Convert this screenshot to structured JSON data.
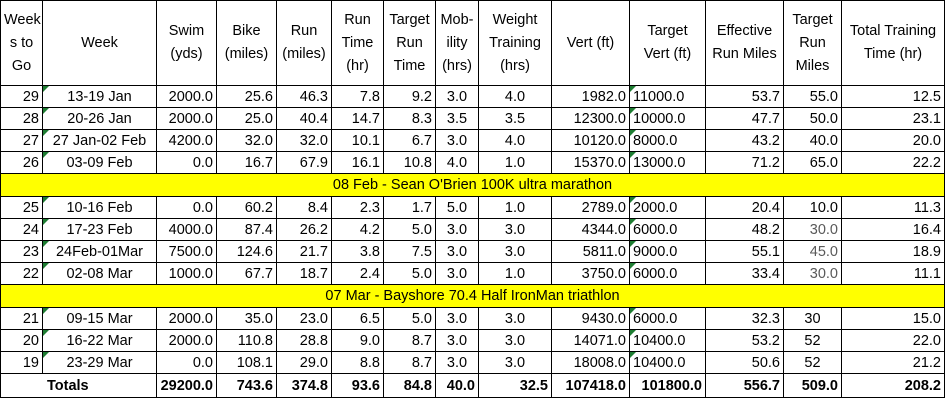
{
  "headers": [
    "Week s to Go",
    "Week",
    "Swim (yds)",
    "Bike (miles)",
    "Run (miles)",
    "Run Time (hr)",
    "Target Run Time",
    "Mob-ility (hrs)",
    "Weight Training (hrs)",
    "Vert (ft)",
    "Target Vert (ft)",
    "Effective Run Miles",
    "Target Run Miles",
    "Total Training Time (hr)"
  ],
  "rows_a": [
    [
      "29",
      "13-19 Jan",
      "2000.0",
      "25.6",
      "46.3",
      "7.8",
      "9.2",
      "3.0",
      "4.0",
      "1982.0",
      "11000.0",
      "53.7",
      "55.0",
      "12.5"
    ],
    [
      "28",
      "20-26 Jan",
      "2000.0",
      "25.0",
      "40.4",
      "14.7",
      "8.3",
      "3.5",
      "3.5",
      "12300.0",
      "10000.0",
      "47.7",
      "50.0",
      "23.1"
    ],
    [
      "27",
      "27 Jan-02 Feb",
      "4200.0",
      "32.0",
      "32.0",
      "10.1",
      "6.7",
      "3.0",
      "4.0",
      "10120.0",
      "8000.0",
      "43.2",
      "40.0",
      "20.0"
    ],
    [
      "26",
      "03-09 Feb",
      "0.0",
      "16.7",
      "67.9",
      "16.1",
      "10.8",
      "4.0",
      "1.0",
      "15370.0",
      "13000.0",
      "71.2",
      "65.0",
      "22.2"
    ]
  ],
  "event_1": "08 Feb - Sean O'Brien 100K ultra marathon",
  "rows_b": [
    [
      "25",
      "10-16 Feb",
      "0.0",
      "60.2",
      "8.4",
      "2.3",
      "1.7",
      "5.0",
      "1.0",
      "2789.0",
      "2000.0",
      "20.4",
      "10.0",
      "11.3"
    ],
    [
      "24",
      "17-23 Feb",
      "4000.0",
      "87.4",
      "26.2",
      "4.2",
      "5.0",
      "3.0",
      "3.0",
      "4344.0",
      "6000.0",
      "48.2",
      "30.0",
      "16.4"
    ],
    [
      "23",
      "24Feb-01Mar",
      "7500.0",
      "124.6",
      "21.7",
      "3.8",
      "7.5",
      "3.0",
      "3.0",
      "5811.0",
      "9000.0",
      "55.1",
      "45.0",
      "18.9"
    ],
    [
      "22",
      "02-08 Mar",
      "1000.0",
      "67.7",
      "18.7",
      "2.4",
      "5.0",
      "3.0",
      "1.0",
      "3750.0",
      "6000.0",
      "33.4",
      "30.0",
      "11.1"
    ]
  ],
  "event_2": "07 Mar - Bayshore 70.4 Half IronMan triathlon",
  "rows_c": [
    [
      "21",
      "09-15 Mar",
      "2000.0",
      "35.0",
      "23.0",
      "6.5",
      "5.0",
      "3.0",
      "3.0",
      "9430.0",
      "6000.0",
      "32.3",
      "30",
      "15.0"
    ],
    [
      "20",
      "16-22 Mar",
      "2000.0",
      "110.8",
      "28.8",
      "9.0",
      "8.7",
      "3.0",
      "3.0",
      "14071.0",
      "10400.0",
      "53.2",
      "52",
      "22.0"
    ],
    [
      "19",
      "23-29 Mar",
      "0.0",
      "108.1",
      "29.0",
      "8.8",
      "8.7",
      "3.0",
      "3.0",
      "18008.0",
      "10400.0",
      "50.6",
      "52",
      "21.2"
    ]
  ],
  "totals": [
    "Totals",
    "29200.0",
    "743.6",
    "374.8",
    "93.6",
    "84.8",
    "40.0",
    "32.5",
    "107418.0",
    "101800.0",
    "556.7",
    "509.0",
    "208.2"
  ],
  "colors": {
    "event_fill": "#ffff00",
    "comment_marker": "#1e7d32"
  }
}
